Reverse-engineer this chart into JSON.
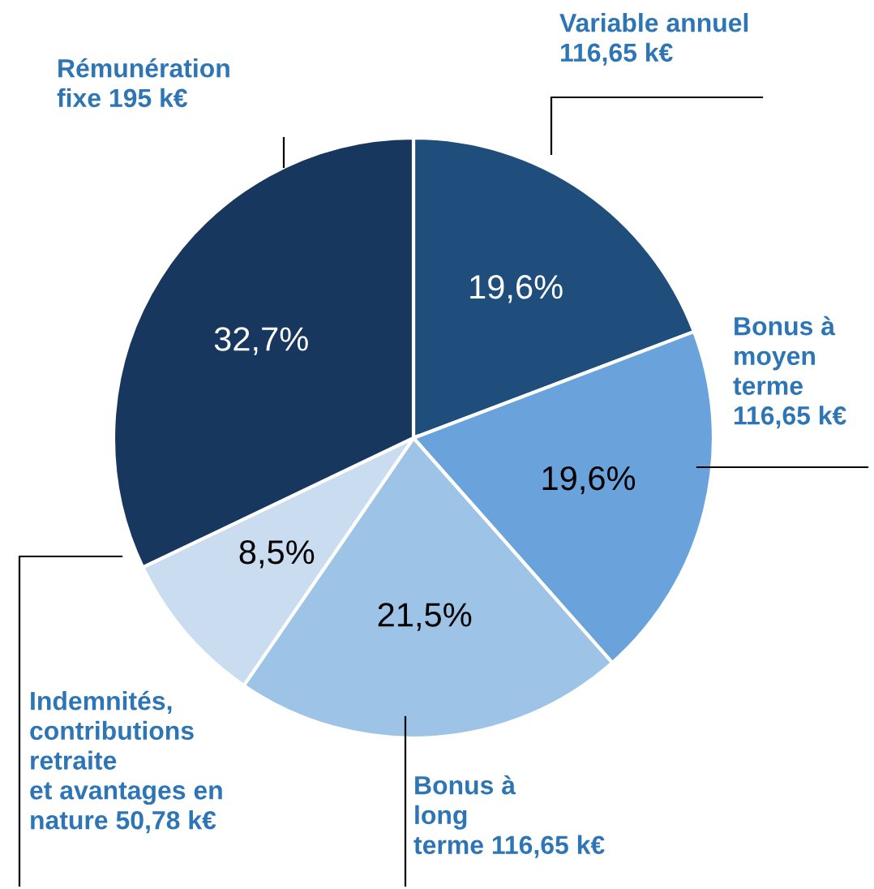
{
  "chart_data": {
    "type": "pie",
    "categories": [
      "Variable annuel\n116,65 k€",
      "Bonus à\nmoyen\nterme\n116,65 k€",
      "Bonus à\nlong\nterme 116,65 k€",
      "Indemnités,\ncontributions\nretraite\net avantages en\nnature 50,78 k€",
      "Rémunération\nfixe 195 k€"
    ],
    "values": [
      19.6,
      19.6,
      21.5,
      8.5,
      32.7
    ],
    "colors": [
      "#1f4e7d",
      "#6aa3dc",
      "#9dc3e6",
      "#c9dcf0",
      "#17375e"
    ],
    "value_labels": [
      "19,6%",
      "19,6%",
      "21,5%",
      "8,5%",
      "32,7%"
    ],
    "legend": false
  }
}
